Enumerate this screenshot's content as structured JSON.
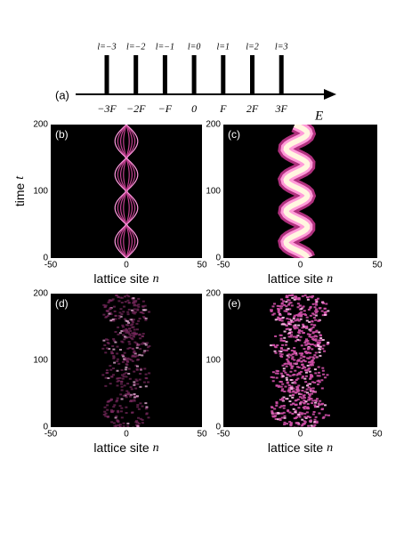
{
  "figure": {
    "panel_a": {
      "label": "(a)",
      "axis_label": "E",
      "levels": [
        {
          "index": "l=−3",
          "energy": "−3F"
        },
        {
          "index": "l=−2",
          "energy": "−2F"
        },
        {
          "index": "l=−1",
          "energy": "−F"
        },
        {
          "index": "l=0",
          "energy": "0"
        },
        {
          "index": "l=1",
          "energy": "F"
        },
        {
          "index": "l=2",
          "energy": "2F"
        },
        {
          "index": "l=3",
          "energy": "3F"
        }
      ]
    },
    "panels": [
      {
        "label": "(b)",
        "x_label": {
          "text": "lattice site",
          "var": "n"
        },
        "y_label": {
          "text": "time",
          "var": "t"
        },
        "xticks": [
          -50,
          0,
          50
        ],
        "yticks": [
          0,
          100,
          200
        ]
      },
      {
        "label": "(c)",
        "x_label": {
          "text": "lattice site",
          "var": "n"
        },
        "xticks": [
          -50,
          0,
          50
        ],
        "yticks": [
          0,
          100,
          200
        ]
      },
      {
        "label": "(d)",
        "x_label": {
          "text": "lattice site",
          "var": "n"
        },
        "xticks": [
          -50,
          0,
          50
        ],
        "yticks": [
          0,
          100,
          200
        ]
      },
      {
        "label": "(e)",
        "x_label": {
          "text": "lattice site",
          "var": "n"
        },
        "xticks": [
          -50,
          0,
          50
        ],
        "yticks": [
          0,
          100,
          200
        ]
      }
    ]
  }
}
